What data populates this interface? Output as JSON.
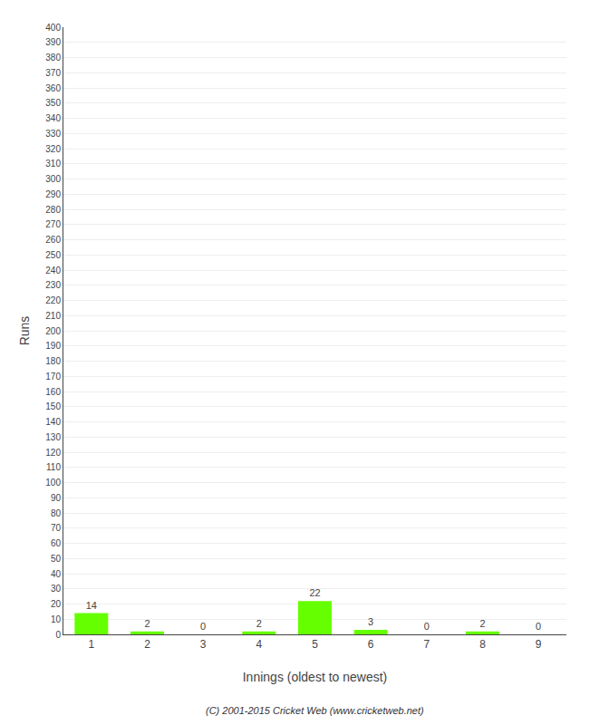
{
  "chart_data": {
    "type": "bar",
    "categories": [
      "1",
      "2",
      "3",
      "4",
      "5",
      "6",
      "7",
      "8",
      "9"
    ],
    "values": [
      14,
      2,
      0,
      2,
      22,
      3,
      0,
      2,
      0
    ],
    "color": "#66ff00",
    "xlabel": "Innings (oldest to newest)",
    "ylabel": "Runs",
    "ylim": [
      0,
      400
    ],
    "yticks": [
      0,
      10,
      20,
      30,
      40,
      50,
      60,
      70,
      80,
      90,
      100,
      110,
      120,
      130,
      140,
      150,
      160,
      170,
      180,
      190,
      200,
      210,
      220,
      230,
      240,
      250,
      260,
      270,
      280,
      290,
      300,
      310,
      320,
      330,
      340,
      350,
      360,
      370,
      380,
      390,
      400
    ],
    "grid": true,
    "data_labels": true,
    "annotations": [
      "(C) 2001-2015 Cricket Web (www.cricketweb.net)"
    ]
  }
}
